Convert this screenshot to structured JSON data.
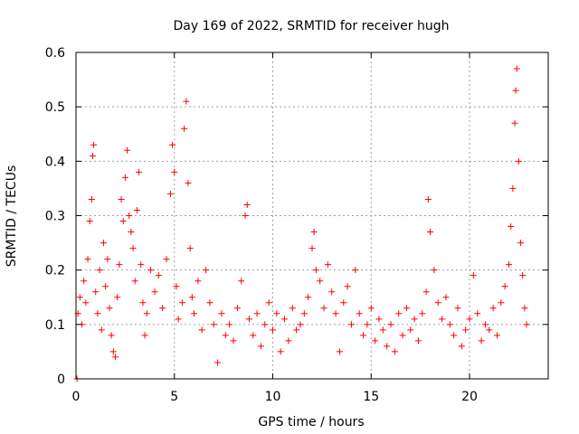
{
  "chart_data": {
    "type": "scatter",
    "title": "Day 169 of 2022, SRMTID for receiver hugh",
    "xlabel": "GPS time / hours",
    "ylabel": "SRMTID / TECUs",
    "xlim": [
      0,
      24
    ],
    "ylim": [
      0,
      0.6
    ],
    "xticks": [
      0,
      5,
      10,
      15,
      20
    ],
    "xtick_labels": [
      "0",
      "5",
      "10",
      "15",
      "20"
    ],
    "yticks": [
      0,
      0.1,
      0.2,
      0.3,
      0.4,
      0.5,
      0.6
    ],
    "ytick_labels": [
      "0",
      "0.1",
      "0.2",
      "0.3",
      "0.4",
      "0.5",
      "0.6"
    ],
    "grid": true,
    "marker": "+",
    "color": "#ff0000",
    "series": [
      {
        "name": "SRMTID",
        "description_points": "approximate trend samples read from the dense scatter",
        "points": [
          [
            0.05,
            0.0
          ],
          [
            0.1,
            0.12
          ],
          [
            0.2,
            0.15
          ],
          [
            0.3,
            0.1
          ],
          [
            0.4,
            0.18
          ],
          [
            0.5,
            0.14
          ],
          [
            0.6,
            0.22
          ],
          [
            0.7,
            0.29
          ],
          [
            0.8,
            0.33
          ],
          [
            0.85,
            0.41
          ],
          [
            0.9,
            0.43
          ],
          [
            1.0,
            0.16
          ],
          [
            1.1,
            0.12
          ],
          [
            1.2,
            0.2
          ],
          [
            1.3,
            0.09
          ],
          [
            1.4,
            0.25
          ],
          [
            1.5,
            0.17
          ],
          [
            1.6,
            0.22
          ],
          [
            1.7,
            0.13
          ],
          [
            1.8,
            0.08
          ],
          [
            1.9,
            0.05
          ],
          [
            2.0,
            0.04
          ],
          [
            2.1,
            0.15
          ],
          [
            2.2,
            0.21
          ],
          [
            2.3,
            0.33
          ],
          [
            2.4,
            0.29
          ],
          [
            2.5,
            0.37
          ],
          [
            2.6,
            0.42
          ],
          [
            2.7,
            0.3
          ],
          [
            2.8,
            0.27
          ],
          [
            2.9,
            0.24
          ],
          [
            3.0,
            0.18
          ],
          [
            3.1,
            0.31
          ],
          [
            3.2,
            0.38
          ],
          [
            3.3,
            0.21
          ],
          [
            3.4,
            0.14
          ],
          [
            3.5,
            0.08
          ],
          [
            3.6,
            0.12
          ],
          [
            3.8,
            0.2
          ],
          [
            4.0,
            0.16
          ],
          [
            4.2,
            0.19
          ],
          [
            4.4,
            0.13
          ],
          [
            4.6,
            0.22
          ],
          [
            4.8,
            0.34
          ],
          [
            4.9,
            0.43
          ],
          [
            5.0,
            0.38
          ],
          [
            5.1,
            0.17
          ],
          [
            5.2,
            0.11
          ],
          [
            5.4,
            0.14
          ],
          [
            5.5,
            0.46
          ],
          [
            5.6,
            0.51
          ],
          [
            5.7,
            0.36
          ],
          [
            5.8,
            0.24
          ],
          [
            5.9,
            0.15
          ],
          [
            6.0,
            0.12
          ],
          [
            6.2,
            0.18
          ],
          [
            6.4,
            0.09
          ],
          [
            6.6,
            0.2
          ],
          [
            6.8,
            0.14
          ],
          [
            7.0,
            0.1
          ],
          [
            7.2,
            0.03
          ],
          [
            7.4,
            0.12
          ],
          [
            7.6,
            0.08
          ],
          [
            7.8,
            0.1
          ],
          [
            8.0,
            0.07
          ],
          [
            8.2,
            0.13
          ],
          [
            8.4,
            0.18
          ],
          [
            8.6,
            0.3
          ],
          [
            8.7,
            0.32
          ],
          [
            8.8,
            0.11
          ],
          [
            9.0,
            0.08
          ],
          [
            9.2,
            0.12
          ],
          [
            9.4,
            0.06
          ],
          [
            9.6,
            0.1
          ],
          [
            9.8,
            0.14
          ],
          [
            10.0,
            0.09
          ],
          [
            10.2,
            0.12
          ],
          [
            10.4,
            0.05
          ],
          [
            10.6,
            0.11
          ],
          [
            10.8,
            0.07
          ],
          [
            11.0,
            0.13
          ],
          [
            11.2,
            0.09
          ],
          [
            11.4,
            0.1
          ],
          [
            11.6,
            0.12
          ],
          [
            11.8,
            0.15
          ],
          [
            12.0,
            0.24
          ],
          [
            12.1,
            0.27
          ],
          [
            12.2,
            0.2
          ],
          [
            12.4,
            0.18
          ],
          [
            12.6,
            0.13
          ],
          [
            12.8,
            0.21
          ],
          [
            13.0,
            0.16
          ],
          [
            13.2,
            0.12
          ],
          [
            13.4,
            0.05
          ],
          [
            13.6,
            0.14
          ],
          [
            13.8,
            0.17
          ],
          [
            14.0,
            0.1
          ],
          [
            14.2,
            0.2
          ],
          [
            14.4,
            0.12
          ],
          [
            14.6,
            0.08
          ],
          [
            14.8,
            0.1
          ],
          [
            15.0,
            0.13
          ],
          [
            15.2,
            0.07
          ],
          [
            15.4,
            0.11
          ],
          [
            15.6,
            0.09
          ],
          [
            15.8,
            0.06
          ],
          [
            16.0,
            0.1
          ],
          [
            16.2,
            0.05
          ],
          [
            16.4,
            0.12
          ],
          [
            16.6,
            0.08
          ],
          [
            16.8,
            0.13
          ],
          [
            17.0,
            0.09
          ],
          [
            17.2,
            0.11
          ],
          [
            17.4,
            0.07
          ],
          [
            17.6,
            0.12
          ],
          [
            17.8,
            0.16
          ],
          [
            17.9,
            0.33
          ],
          [
            18.0,
            0.27
          ],
          [
            18.2,
            0.2
          ],
          [
            18.4,
            0.14
          ],
          [
            18.6,
            0.11
          ],
          [
            18.8,
            0.15
          ],
          [
            19.0,
            0.1
          ],
          [
            19.2,
            0.08
          ],
          [
            19.4,
            0.13
          ],
          [
            19.6,
            0.06
          ],
          [
            19.8,
            0.09
          ],
          [
            20.0,
            0.11
          ],
          [
            20.2,
            0.19
          ],
          [
            20.4,
            0.12
          ],
          [
            20.6,
            0.07
          ],
          [
            20.8,
            0.1
          ],
          [
            21.0,
            0.09
          ],
          [
            21.2,
            0.13
          ],
          [
            21.4,
            0.08
          ],
          [
            21.6,
            0.14
          ],
          [
            21.8,
            0.17
          ],
          [
            22.0,
            0.21
          ],
          [
            22.1,
            0.28
          ],
          [
            22.2,
            0.35
          ],
          [
            22.3,
            0.47
          ],
          [
            22.35,
            0.53
          ],
          [
            22.4,
            0.57
          ],
          [
            22.5,
            0.4
          ],
          [
            22.6,
            0.25
          ],
          [
            22.7,
            0.19
          ],
          [
            22.8,
            0.13
          ],
          [
            22.9,
            0.1
          ]
        ]
      }
    ]
  }
}
